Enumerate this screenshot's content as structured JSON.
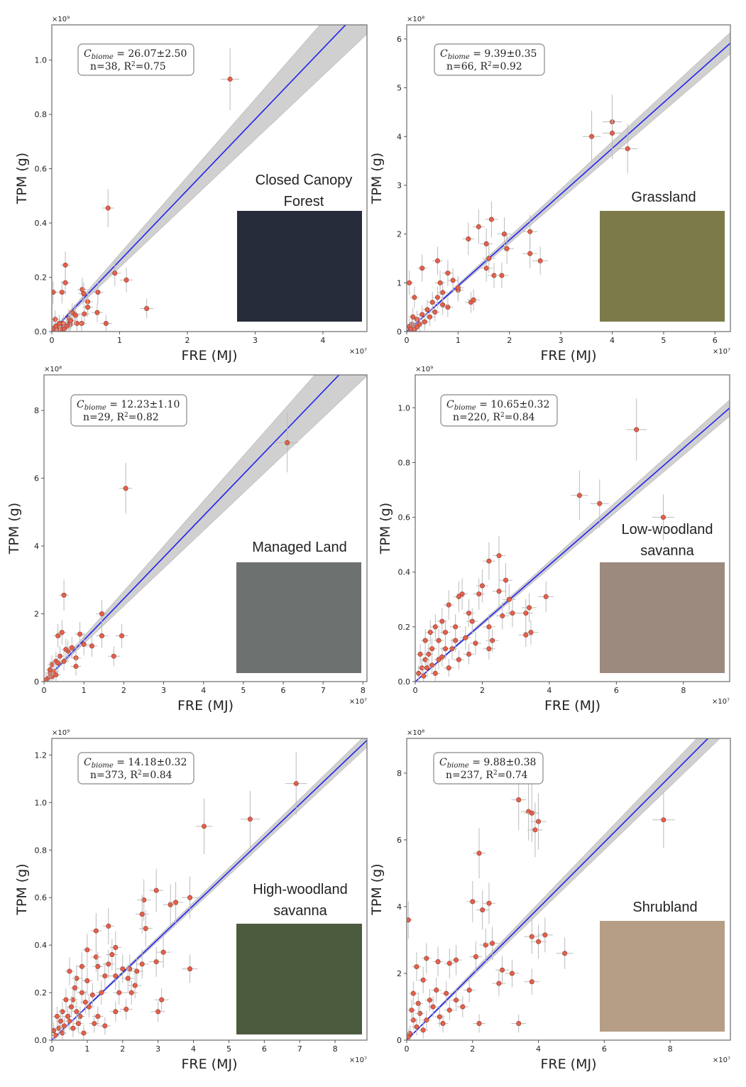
{
  "chart_data": [
    {
      "type": "scatter",
      "biome": [
        "Closed Canopy",
        "Forest"
      ],
      "xlabel": "FRE (MJ)",
      "ylabel": "TPM (g)",
      "x_multiplier": "×10⁷",
      "y_multiplier": "×10⁹",
      "xlim": [
        0,
        4.65
      ],
      "ylim": [
        0,
        1.13
      ],
      "xticks": [
        0,
        1,
        2,
        3,
        4
      ],
      "yticks": [
        "0.0",
        "0.2",
        "0.4",
        "0.6",
        "0.8",
        "1.0"
      ],
      "fit": {
        "c_biome": 26.07,
        "c_err": 2.5,
        "c_label": "26.07±2.50",
        "n": "38",
        "r2": "0.75"
      },
      "inset_color": "#272c3a",
      "points": [
        [
          2.63,
          0.93
        ],
        [
          0.83,
          0.455
        ],
        [
          0.2,
          0.245
        ],
        [
          0.2,
          0.18
        ],
        [
          0.02,
          0.145
        ],
        [
          0.15,
          0.145
        ],
        [
          0.45,
          0.155
        ],
        [
          0.47,
          0.14
        ],
        [
          0.68,
          0.145
        ],
        [
          0.93,
          0.215
        ],
        [
          1.1,
          0.19
        ],
        [
          1.4,
          0.085
        ],
        [
          0.53,
          0.11
        ],
        [
          0.53,
          0.09
        ],
        [
          0.48,
          0.065
        ],
        [
          0.33,
          0.065
        ],
        [
          0.67,
          0.07
        ],
        [
          0.8,
          0.03
        ],
        [
          0.44,
          0.03
        ],
        [
          0.37,
          0.03
        ],
        [
          0.25,
          0.05
        ],
        [
          0.25,
          0.03
        ],
        [
          0.27,
          0.025
        ],
        [
          0.15,
          0.02
        ],
        [
          0.12,
          0.015
        ],
        [
          0.1,
          0.01
        ],
        [
          0.05,
          0.045
        ],
        [
          0.17,
          0.03
        ],
        [
          0.08,
          0.005
        ],
        [
          0.13,
          0.005
        ],
        [
          0.3,
          0.07
        ],
        [
          0.22,
          0.02
        ],
        [
          0.06,
          0.02
        ],
        [
          0.18,
          0.01
        ],
        [
          0.02,
          0.01
        ],
        [
          0.11,
          0.03
        ],
        [
          0.28,
          0.04
        ],
        [
          0.35,
          0.06
        ]
      ]
    },
    {
      "type": "scatter",
      "biome": [
        "Grassland"
      ],
      "xlabel": "FRE (MJ)",
      "ylabel": "TPM (g)",
      "x_multiplier": "×10⁷",
      "y_multiplier": "×10⁸",
      "xlim": [
        0,
        6.3
      ],
      "ylim": [
        0,
        6.29
      ],
      "xticks": [
        0,
        1,
        2,
        3,
        4,
        5,
        6
      ],
      "yticks": [
        "0",
        "1",
        "2",
        "3",
        "4",
        "5",
        "6"
      ],
      "fit": {
        "c_biome": 9.39,
        "c_err": 0.35,
        "c_label": "9.39±0.35",
        "n": "66",
        "r2": "0.92"
      },
      "inset_color": "#7d7a4a",
      "points": [
        [
          3.6,
          4.0
        ],
        [
          4.0,
          4.3
        ],
        [
          4.0,
          4.07
        ],
        [
          4.3,
          3.75
        ],
        [
          2.4,
          2.05
        ],
        [
          2.4,
          1.6
        ],
        [
          2.6,
          1.45
        ],
        [
          1.2,
          1.9
        ],
        [
          1.4,
          2.15
        ],
        [
          1.65,
          2.3
        ],
        [
          1.55,
          1.8
        ],
        [
          1.9,
          2.0
        ],
        [
          1.95,
          1.7
        ],
        [
          1.55,
          1.3
        ],
        [
          1.7,
          1.15
        ],
        [
          1.85,
          1.15
        ],
        [
          1.25,
          0.6
        ],
        [
          1.3,
          0.65
        ],
        [
          1.0,
          0.85
        ],
        [
          0.8,
          1.2
        ],
        [
          0.6,
          1.45
        ],
        [
          0.3,
          1.3
        ],
        [
          0.05,
          1.0
        ],
        [
          0.15,
          0.7
        ],
        [
          0.9,
          1.05
        ],
        [
          0.7,
          0.8
        ],
        [
          0.5,
          0.6
        ],
        [
          0.4,
          0.45
        ],
        [
          0.3,
          0.35
        ],
        [
          0.2,
          0.25
        ],
        [
          0.1,
          0.15
        ],
        [
          0.05,
          0.1
        ],
        [
          0.6,
          0.7
        ],
        [
          0.8,
          0.5
        ],
        [
          0.35,
          0.2
        ],
        [
          0.15,
          0.05
        ],
        [
          1.0,
          0.9
        ],
        [
          0.45,
          0.3
        ],
        [
          0.25,
          0.15
        ],
        [
          0.12,
          0.3
        ],
        [
          0.55,
          0.4
        ],
        [
          0.7,
          0.55
        ],
        [
          0.08,
          0.05
        ],
        [
          0.2,
          0.1
        ],
        [
          0.65,
          1.0
        ],
        [
          1.6,
          1.5
        ]
      ]
    },
    {
      "type": "scatter",
      "biome": [
        "Managed Land"
      ],
      "xlabel": "FRE (MJ)",
      "ylabel": "TPM (g)",
      "x_multiplier": "×10⁷",
      "y_multiplier": "×10⁸",
      "xlim": [
        0,
        8.1
      ],
      "ylim": [
        0,
        9.05
      ],
      "xticks": [
        0,
        1,
        2,
        3,
        4,
        5,
        6,
        7,
        8
      ],
      "yticks": [
        "0",
        "2",
        "4",
        "6",
        "8"
      ],
      "fit": {
        "c_biome": 12.23,
        "c_err": 1.1,
        "c_label": "12.23±1.10",
        "n": "29",
        "r2": "0.82"
      },
      "inset_color": "#6d716f",
      "points": [
        [
          6.1,
          7.05
        ],
        [
          2.05,
          5.7
        ],
        [
          0.5,
          2.55
        ],
        [
          1.45,
          2.0
        ],
        [
          1.95,
          1.35
        ],
        [
          1.45,
          1.35
        ],
        [
          0.45,
          1.45
        ],
        [
          0.35,
          1.35
        ],
        [
          0.9,
          1.4
        ],
        [
          1.2,
          1.05
        ],
        [
          1.75,
          0.75
        ],
        [
          0.8,
          0.7
        ],
        [
          0.8,
          0.45
        ],
        [
          0.6,
          0.9
        ],
        [
          0.3,
          0.6
        ],
        [
          0.2,
          0.5
        ],
        [
          0.25,
          0.3
        ],
        [
          0.15,
          0.25
        ],
        [
          0.1,
          0.1
        ],
        [
          0.4,
          0.75
        ],
        [
          0.55,
          0.95
        ],
        [
          0.2,
          0.15
        ],
        [
          0.3,
          0.2
        ],
        [
          0.05,
          0.05
        ],
        [
          0.15,
          0.35
        ],
        [
          0.35,
          0.55
        ],
        [
          0.5,
          0.6
        ],
        [
          0.7,
          1.0
        ],
        [
          1.0,
          1.1
        ]
      ]
    },
    {
      "type": "scatter",
      "biome": [
        "Low-woodland",
        "savanna"
      ],
      "xlabel": "FRE (MJ)",
      "ylabel": "TPM (g)",
      "x_multiplier": "×10⁷",
      "y_multiplier": "×10⁹",
      "xlim": [
        0,
        9.38
      ],
      "ylim": [
        0,
        1.12
      ],
      "xticks": [
        0,
        2,
        4,
        6,
        8
      ],
      "yticks": [
        "0.0",
        "0.2",
        "0.4",
        "0.6",
        "0.8",
        "1.0"
      ],
      "fit": {
        "c_biome": 10.65,
        "c_err": 0.32,
        "c_label": "10.65±0.32",
        "n": "220",
        "r2": "0.84"
      },
      "inset_color": "#9c8a7e",
      "points": [
        [
          6.6,
          0.92
        ],
        [
          4.9,
          0.68
        ],
        [
          5.5,
          0.65
        ],
        [
          7.4,
          0.6
        ],
        [
          3.9,
          0.31
        ],
        [
          3.3,
          0.25
        ],
        [
          3.4,
          0.27
        ],
        [
          3.45,
          0.18
        ],
        [
          3.3,
          0.17
        ],
        [
          2.5,
          0.46
        ],
        [
          2.2,
          0.44
        ],
        [
          2.7,
          0.37
        ],
        [
          2.5,
          0.33
        ],
        [
          2.8,
          0.3
        ],
        [
          2.0,
          0.35
        ],
        [
          1.9,
          0.32
        ],
        [
          1.4,
          0.32
        ],
        [
          1.3,
          0.31
        ],
        [
          1.6,
          0.25
        ],
        [
          1.7,
          0.22
        ],
        [
          2.2,
          0.2
        ],
        [
          2.3,
          0.15
        ],
        [
          2.2,
          0.12
        ],
        [
          2.6,
          0.24
        ],
        [
          2.9,
          0.25
        ],
        [
          1.0,
          0.28
        ],
        [
          0.8,
          0.22
        ],
        [
          1.2,
          0.2
        ],
        [
          1.5,
          0.16
        ],
        [
          1.8,
          0.14
        ],
        [
          0.9,
          0.18
        ],
        [
          0.7,
          0.15
        ],
        [
          0.5,
          0.12
        ],
        [
          0.6,
          0.2
        ],
        [
          0.4,
          0.1
        ],
        [
          0.3,
          0.08
        ],
        [
          0.2,
          0.05
        ],
        [
          0.1,
          0.03
        ],
        [
          0.5,
          0.06
        ],
        [
          0.8,
          0.09
        ],
        [
          1.1,
          0.12
        ],
        [
          1.3,
          0.08
        ],
        [
          1.0,
          0.05
        ],
        [
          0.3,
          0.15
        ],
        [
          0.15,
          0.1
        ],
        [
          0.6,
          0.03
        ],
        [
          0.9,
          0.12
        ],
        [
          1.2,
          0.15
        ],
        [
          0.45,
          0.18
        ],
        [
          0.25,
          0.02
        ],
        [
          0.7,
          0.08
        ],
        [
          1.6,
          0.1
        ],
        [
          0.35,
          0.05
        ]
      ]
    },
    {
      "type": "scatter",
      "biome": [
        "High-woodland",
        "savanna"
      ],
      "xlabel": "FRE (MJ)",
      "ylabel": "TPM (g)",
      "x_multiplier": "×10⁷",
      "y_multiplier": "×10⁹",
      "xlim": [
        0,
        8.9
      ],
      "ylim": [
        0,
        1.27
      ],
      "xticks": [
        0,
        1,
        2,
        3,
        4,
        5,
        6,
        7,
        8
      ],
      "yticks": [
        "0.0",
        "0.2",
        "0.4",
        "0.6",
        "0.8",
        "1.0",
        "1.2"
      ],
      "fit": {
        "c_biome": 14.18,
        "c_err": 0.32,
        "c_label": "14.18±0.32",
        "n": "373",
        "r2": "0.84"
      },
      "inset_color": "#4c5a3e",
      "points": [
        [
          6.9,
          1.08
        ],
        [
          5.6,
          0.93
        ],
        [
          4.3,
          0.9
        ],
        [
          2.95,
          0.63
        ],
        [
          3.9,
          0.6
        ],
        [
          2.6,
          0.59
        ],
        [
          2.55,
          0.53
        ],
        [
          3.35,
          0.57
        ],
        [
          3.5,
          0.58
        ],
        [
          2.65,
          0.47
        ],
        [
          1.6,
          0.48
        ],
        [
          1.25,
          0.46
        ],
        [
          1.0,
          0.38
        ],
        [
          1.8,
          0.39
        ],
        [
          1.7,
          0.36
        ],
        [
          3.15,
          0.37
        ],
        [
          2.95,
          0.33
        ],
        [
          3.9,
          0.3
        ],
        [
          3.1,
          0.17
        ],
        [
          3.0,
          0.12
        ],
        [
          2.2,
          0.3
        ],
        [
          2.4,
          0.29
        ],
        [
          1.25,
          0.35
        ],
        [
          1.3,
          0.31
        ],
        [
          0.85,
          0.31
        ],
        [
          0.5,
          0.29
        ],
        [
          2.0,
          0.3
        ],
        [
          2.55,
          0.32
        ],
        [
          1.8,
          0.27
        ],
        [
          1.5,
          0.27
        ],
        [
          1.6,
          0.32
        ],
        [
          2.15,
          0.26
        ],
        [
          2.25,
          0.2
        ],
        [
          2.35,
          0.23
        ],
        [
          1.9,
          0.2
        ],
        [
          1.8,
          0.12
        ],
        [
          2.1,
          0.13
        ],
        [
          1.5,
          0.06
        ],
        [
          1.2,
          0.07
        ],
        [
          1.0,
          0.25
        ],
        [
          0.7,
          0.26
        ],
        [
          0.85,
          0.2
        ],
        [
          1.4,
          0.2
        ],
        [
          0.4,
          0.17
        ],
        [
          0.6,
          0.17
        ],
        [
          0.3,
          0.12
        ],
        [
          0.8,
          0.1
        ],
        [
          0.5,
          0.08
        ],
        [
          0.2,
          0.05
        ],
        [
          0.1,
          0.02
        ],
        [
          0.3,
          0.03
        ],
        [
          0.6,
          0.05
        ],
        [
          0.9,
          0.03
        ],
        [
          0.15,
          0.1
        ],
        [
          0.45,
          0.1
        ],
        [
          0.7,
          0.12
        ],
        [
          1.05,
          0.14
        ],
        [
          1.3,
          0.1
        ],
        [
          0.25,
          0.08
        ],
        [
          0.55,
          0.14
        ],
        [
          0.35,
          0.06
        ],
        [
          0.05,
          0.04
        ],
        [
          0.75,
          0.07
        ],
        [
          0.95,
          0.16
        ],
        [
          1.15,
          0.19
        ],
        [
          0.65,
          0.22
        ]
      ]
    },
    {
      "type": "scatter",
      "biome": [
        "Shrubland"
      ],
      "xlabel": "FRE (MJ)",
      "ylabel": "TPM (g)",
      "x_multiplier": "×10⁷",
      "y_multiplier": "×10⁸",
      "xlim": [
        0,
        9.83
      ],
      "ylim": [
        0,
        9.04
      ],
      "xticks": [
        0,
        2,
        4,
        6,
        8
      ],
      "yticks": [
        "0",
        "2",
        "4",
        "6",
        "8"
      ],
      "fit": {
        "c_biome": 9.88,
        "c_err": 0.38,
        "c_label": "9.88±0.38",
        "n": "237",
        "r2": "0.74"
      },
      "inset_color": "#b59e85",
      "points": [
        [
          7.8,
          6.6
        ],
        [
          3.4,
          7.2
        ],
        [
          3.7,
          6.85
        ],
        [
          3.8,
          6.8
        ],
        [
          3.9,
          6.3
        ],
        [
          4.0,
          6.55
        ],
        [
          2.2,
          5.6
        ],
        [
          2.5,
          4.1
        ],
        [
          2.0,
          4.15
        ],
        [
          2.3,
          3.9
        ],
        [
          0.05,
          3.6
        ],
        [
          4.2,
          3.15
        ],
        [
          4.0,
          2.95
        ],
        [
          3.8,
          3.1
        ],
        [
          4.8,
          2.6
        ],
        [
          1.5,
          2.4
        ],
        [
          0.6,
          2.45
        ],
        [
          0.3,
          2.2
        ],
        [
          0.95,
          2.35
        ],
        [
          1.3,
          2.3
        ],
        [
          2.4,
          2.85
        ],
        [
          2.6,
          2.9
        ],
        [
          2.1,
          2.5
        ],
        [
          2.9,
          2.1
        ],
        [
          3.2,
          2.0
        ],
        [
          3.8,
          1.75
        ],
        [
          2.8,
          1.7
        ],
        [
          3.4,
          0.5
        ],
        [
          2.2,
          0.5
        ],
        [
          1.7,
          1.0
        ],
        [
          0.2,
          1.4
        ],
        [
          0.5,
          1.8
        ],
        [
          0.9,
          1.5
        ],
        [
          1.2,
          1.4
        ],
        [
          0.8,
          1.0
        ],
        [
          0.4,
          0.8
        ],
        [
          0.6,
          0.6
        ],
        [
          0.3,
          0.4
        ],
        [
          0.1,
          0.2
        ],
        [
          1.0,
          0.7
        ],
        [
          1.5,
          1.2
        ],
        [
          1.1,
          0.5
        ],
        [
          0.2,
          0.6
        ],
        [
          0.5,
          0.3
        ],
        [
          0.7,
          1.2
        ],
        [
          0.15,
          0.9
        ],
        [
          0.35,
          1.1
        ],
        [
          0.05,
          0.1
        ],
        [
          1.3,
          0.9
        ],
        [
          1.9,
          1.5
        ]
      ]
    }
  ]
}
